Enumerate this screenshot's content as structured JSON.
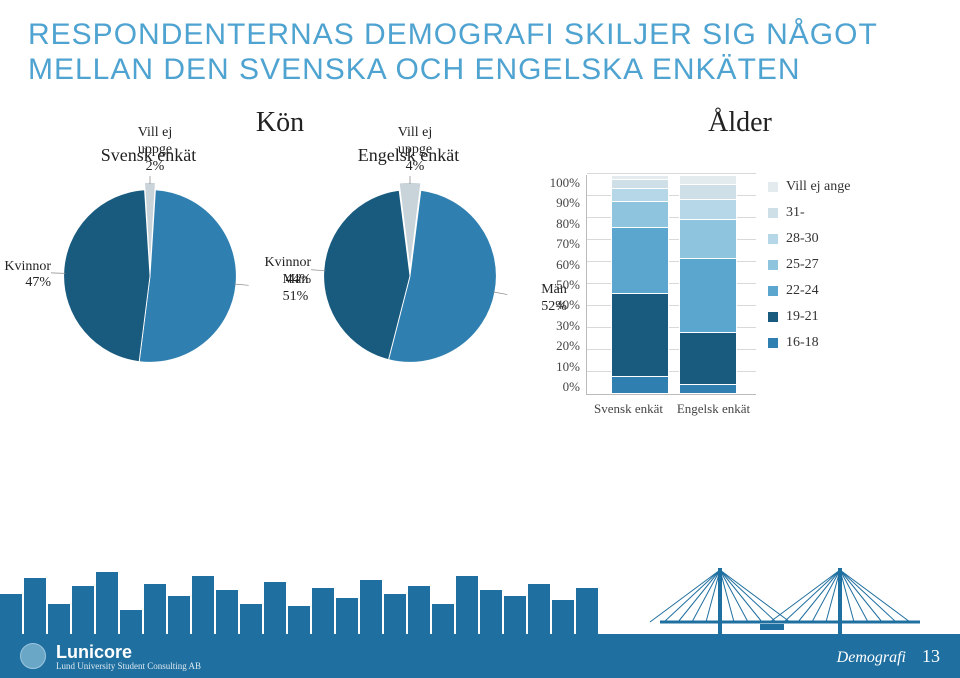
{
  "title_line1": "RESPONDENTERNAS DEMOGRAFI SKILJER SIG NÅGOT",
  "title_line2": "MELLAN DEN SVENSKA OCH ENGELSKA ENKÄTEN",
  "kon": {
    "title": "Kön",
    "title_fontsize": 28,
    "subtitles": [
      "Svensk enkät",
      "Engelsk enkät"
    ],
    "pies": [
      {
        "slices": [
          {
            "label": "Vill ej uppge",
            "pct_label": "2%",
            "value": 2,
            "color": "#c9d4da"
          },
          {
            "label": "Män",
            "pct_label": "51%",
            "value": 51,
            "color": "#2f7fb0"
          },
          {
            "label": "Kvinnor",
            "pct_label": "47%",
            "value": 47,
            "color": "#195a7f"
          }
        ]
      },
      {
        "slices": [
          {
            "label": "Vill ej uppge",
            "pct_label": "4%",
            "value": 4,
            "color": "#c9d4da"
          },
          {
            "label": "Män",
            "pct_label": "52%",
            "value": 52,
            "color": "#2f7fb0"
          },
          {
            "label": "Kvinnor",
            "pct_label": "44%",
            "value": 44,
            "color": "#195a7f"
          }
        ]
      }
    ]
  },
  "alder": {
    "title": "Ålder",
    "title_fontsize": 28,
    "type": "stacked-bar-100",
    "yticks": [
      "0%",
      "10%",
      "20%",
      "30%",
      "40%",
      "50%",
      "60%",
      "70%",
      "80%",
      "90%",
      "100%"
    ],
    "categories_x": [
      "Svensk enkät",
      "Engelsk enkät"
    ],
    "series": [
      {
        "name": "16-18",
        "color": "#2f7fb0"
      },
      {
        "name": "19-21",
        "color": "#195a7f"
      },
      {
        "name": "22-24",
        "color": "#5aa6cf"
      },
      {
        "name": "25-27",
        "color": "#8fc4df"
      },
      {
        "name": "28-30",
        "color": "#b6d7e8"
      },
      {
        "name": "31-",
        "color": "#cfdfe8"
      },
      {
        "name": "Vill ej ange",
        "color": "#e3ebef"
      }
    ],
    "data": [
      [
        8,
        38,
        30,
        12,
        6,
        4,
        2
      ],
      [
        4,
        24,
        34,
        18,
        9,
        7,
        4
      ]
    ],
    "legend_order_top_to_bottom": [
      "Vill ej ange",
      "31-",
      "28-30",
      "25-27",
      "22-24",
      "19-21",
      "16-18"
    ],
    "grid_color": "#d9d9d9",
    "axis_color": "#bbbbbb",
    "axis_fontsize": 13
  },
  "footer": {
    "brand": "Lunicore",
    "tagline": "Lund University Student Consulting AB",
    "section": "Demografi",
    "page": "13",
    "bar_color": "#1f6fa0",
    "skyline_color": "#1f6fa0"
  }
}
